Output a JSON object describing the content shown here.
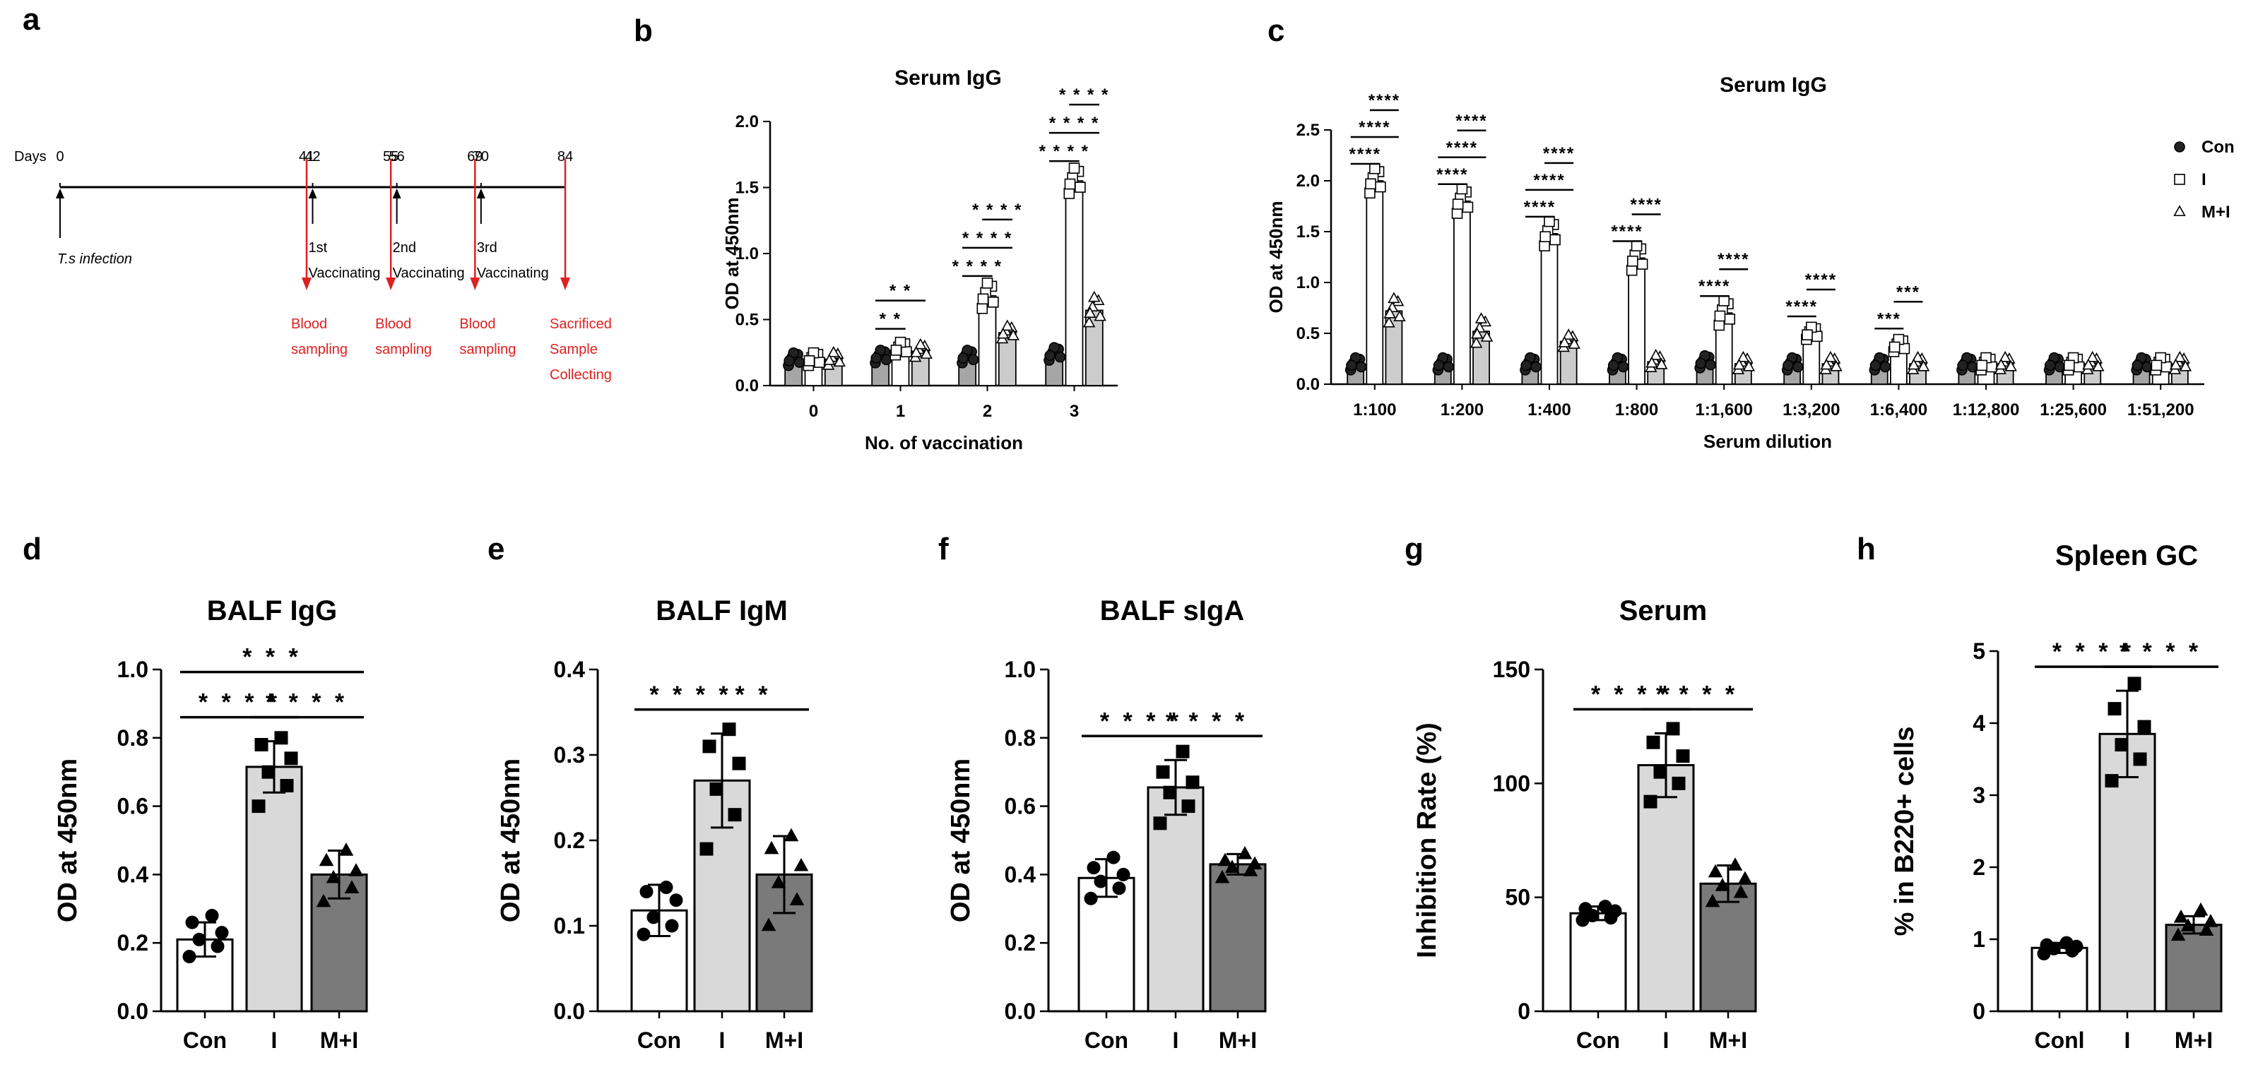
{
  "panel_labels": [
    "a",
    "b",
    "c",
    "d",
    "e",
    "f",
    "g",
    "h"
  ],
  "timeline": {
    "days_label": "Days",
    "ticks": [
      {
        "day": 0,
        "label": "0"
      },
      {
        "day": 41,
        "label": "41"
      },
      {
        "day": 42,
        "label": "42"
      },
      {
        "day": 55,
        "label": "55"
      },
      {
        "day": 56,
        "label": "56"
      },
      {
        "day": 69,
        "label": "69"
      },
      {
        "day": 70,
        "label": "70"
      },
      {
        "day": 84,
        "label": "84"
      }
    ],
    "infection": {
      "day": 0,
      "label": "T.s infection"
    },
    "vaccinations": [
      {
        "day": 42,
        "num": "1st",
        "label": "Vaccinating"
      },
      {
        "day": 56,
        "num": "2nd",
        "label": "Vaccinating"
      },
      {
        "day": 70,
        "num": "3rd",
        "label": "Vaccinating"
      }
    ],
    "samplings": [
      {
        "day": 41,
        "lines": [
          "Blood",
          "sampling"
        ]
      },
      {
        "day": 55,
        "lines": [
          "Blood",
          "sampling"
        ]
      },
      {
        "day": 69,
        "lines": [
          "Blood",
          "sampling"
        ]
      },
      {
        "day": 84,
        "lines": [
          "Sacrificed",
          "Sample",
          "Collecting"
        ]
      }
    ],
    "red_color": "#e02020"
  },
  "colors": {
    "con": "#ffffff",
    "i": "#d9d9d9",
    "mi": "#7a7a7a",
    "con_small": "#a6a6a6",
    "i_small": "#ffffff",
    "mi_small": "#cccccc"
  },
  "legend": {
    "items": [
      {
        "symbol": "circle",
        "label": "Con"
      },
      {
        "symbol": "square",
        "label": "I"
      },
      {
        "symbol": "triangle",
        "label": "M+I"
      }
    ]
  },
  "chart_data": [
    {
      "panel": "b",
      "type": "bar",
      "title": "Serum IgG",
      "xlabel": "No. of vaccination",
      "ylabel": "OD at 450nm",
      "ylim": [
        0,
        2.0
      ],
      "yticks": [
        0.0,
        0.5,
        1.0,
        1.5,
        2.0
      ],
      "categories": [
        "0",
        "1",
        "2",
        "3"
      ],
      "series": [
        {
          "name": "Con",
          "values": [
            0.2,
            0.22,
            0.22,
            0.24
          ]
        },
        {
          "name": "I",
          "values": [
            0.2,
            0.28,
            0.68,
            1.55
          ]
        },
        {
          "name": "M+I",
          "values": [
            0.2,
            0.26,
            0.4,
            0.57
          ]
        }
      ],
      "significance": [
        {
          "cat": 1,
          "from": 0,
          "to": 1,
          "label": "* *"
        },
        {
          "cat": 1,
          "from": 0,
          "to": 2,
          "label": "* *"
        },
        {
          "cat": 2,
          "from": 0,
          "to": 1,
          "label": "* * * *"
        },
        {
          "cat": 2,
          "from": 0,
          "to": 2,
          "label": "* * * *"
        },
        {
          "cat": 2,
          "from": 1,
          "to": 2,
          "label": "* * * *"
        },
        {
          "cat": 3,
          "from": 0,
          "to": 1,
          "label": "* * * *"
        },
        {
          "cat": 3,
          "from": 0,
          "to": 2,
          "label": "* * * *"
        },
        {
          "cat": 3,
          "from": 1,
          "to": 2,
          "label": "* * * *"
        }
      ]
    },
    {
      "panel": "c",
      "type": "bar",
      "title": "Serum IgG",
      "xlabel": "Serum dilution",
      "ylabel": "OD at 450nm",
      "ylim": [
        0,
        2.5
      ],
      "yticks": [
        0.0,
        0.5,
        1.0,
        1.5,
        2.0,
        2.5
      ],
      "categories": [
        "1:100",
        "1:200",
        "1:400",
        "1:800",
        "1:1,600",
        "1:3,200",
        "1:6,400",
        "1:12,800",
        "1:25,600",
        "1:51,200"
      ],
      "series": [
        {
          "name": "Con",
          "values": [
            0.2,
            0.2,
            0.2,
            0.2,
            0.22,
            0.2,
            0.2,
            0.2,
            0.2,
            0.2
          ]
        },
        {
          "name": "I",
          "values": [
            2.0,
            1.8,
            1.48,
            1.24,
            0.7,
            0.5,
            0.38,
            0.2,
            0.2,
            0.2
          ]
        },
        {
          "name": "M+I",
          "values": [
            0.72,
            0.52,
            0.42,
            0.22,
            0.2,
            0.2,
            0.2,
            0.2,
            0.2,
            0.2
          ]
        }
      ],
      "significance": [
        {
          "cat": 0,
          "from": 0,
          "to": 1,
          "label": "****"
        },
        {
          "cat": 0,
          "from": 0,
          "to": 2,
          "label": "****"
        },
        {
          "cat": 0,
          "from": 1,
          "to": 2,
          "label": "****"
        },
        {
          "cat": 1,
          "from": 0,
          "to": 1,
          "label": "****"
        },
        {
          "cat": 1,
          "from": 0,
          "to": 2,
          "label": "****"
        },
        {
          "cat": 1,
          "from": 1,
          "to": 2,
          "label": "****"
        },
        {
          "cat": 2,
          "from": 0,
          "to": 1,
          "label": "****"
        },
        {
          "cat": 2,
          "from": 0,
          "to": 2,
          "label": "****"
        },
        {
          "cat": 2,
          "from": 1,
          "to": 2,
          "label": "****"
        },
        {
          "cat": 3,
          "from": 0,
          "to": 1,
          "label": "****"
        },
        {
          "cat": 3,
          "from": 1,
          "to": 2,
          "label": "****"
        },
        {
          "cat": 4,
          "from": 0,
          "to": 1,
          "label": "****"
        },
        {
          "cat": 4,
          "from": 1,
          "to": 2,
          "label": "****"
        },
        {
          "cat": 5,
          "from": 0,
          "to": 1,
          "label": "****"
        },
        {
          "cat": 5,
          "from": 1,
          "to": 2,
          "label": "****"
        },
        {
          "cat": 6,
          "from": 0,
          "to": 1,
          "label": "***"
        },
        {
          "cat": 6,
          "from": 1,
          "to": 2,
          "label": "***"
        }
      ]
    },
    {
      "panel": "d",
      "type": "bar",
      "title": "BALF IgG",
      "xlabel": "",
      "ylabel": "OD at 450nm",
      "ylim": [
        0,
        1.0
      ],
      "yticks": [
        0.0,
        0.2,
        0.4,
        0.6,
        0.8,
        1.0
      ],
      "decimals": 1,
      "categories": [
        "Con",
        "I",
        "M+I"
      ],
      "values": [
        0.21,
        0.715,
        0.4
      ],
      "errors": [
        0.05,
        0.075,
        0.07
      ],
      "points": [
        [
          0.16,
          0.19,
          0.21,
          0.23,
          0.26,
          0.28
        ],
        [
          0.6,
          0.66,
          0.7,
          0.74,
          0.78,
          0.8
        ],
        [
          0.32,
          0.36,
          0.39,
          0.41,
          0.44,
          0.47
        ]
      ],
      "significance": [
        {
          "from": 0,
          "to": 1,
          "label": "* * * *"
        },
        {
          "from": 1,
          "to": 2,
          "label": "* * * *"
        },
        {
          "from": 0,
          "to": 2,
          "label": "* * *"
        }
      ]
    },
    {
      "panel": "e",
      "type": "bar",
      "title": "BALF IgM",
      "xlabel": "",
      "ylabel": "OD at 450nm",
      "ylim": [
        0,
        0.4
      ],
      "yticks": [
        0.0,
        0.1,
        0.2,
        0.3,
        0.4
      ],
      "decimals": 1,
      "categories": [
        "Con",
        "I",
        "M+I"
      ],
      "values": [
        0.118,
        0.27,
        0.16
      ],
      "errors": [
        0.03,
        0.055,
        0.045
      ],
      "points": [
        [
          0.09,
          0.1,
          0.11,
          0.13,
          0.14,
          0.145
        ],
        [
          0.19,
          0.23,
          0.26,
          0.29,
          0.31,
          0.33
        ],
        [
          0.1,
          0.13,
          0.15,
          0.17,
          0.19,
          0.205
        ]
      ],
      "significance": [
        {
          "from": 0,
          "to": 1,
          "label": "* * * *"
        },
        {
          "from": 1,
          "to": 2,
          "label": "* *"
        }
      ]
    },
    {
      "panel": "f",
      "type": "bar",
      "title": "BALF sIgA",
      "xlabel": "",
      "ylabel": "OD at 450nm",
      "ylim": [
        0,
        1.0
      ],
      "yticks": [
        0.0,
        0.2,
        0.4,
        0.6,
        0.8,
        1.0
      ],
      "decimals": 1,
      "categories": [
        "Con",
        "I",
        "M+I"
      ],
      "values": [
        0.39,
        0.655,
        0.43
      ],
      "errors": [
        0.055,
        0.08,
        0.03
      ],
      "points": [
        [
          0.33,
          0.36,
          0.38,
          0.4,
          0.42,
          0.45
        ],
        [
          0.55,
          0.6,
          0.64,
          0.67,
          0.7,
          0.76
        ],
        [
          0.39,
          0.41,
          0.42,
          0.43,
          0.44,
          0.46
        ]
      ],
      "significance": [
        {
          "from": 0,
          "to": 1,
          "label": "* * * *"
        },
        {
          "from": 1,
          "to": 2,
          "label": "* * * *"
        }
      ]
    },
    {
      "panel": "g",
      "type": "bar",
      "title": "Serum",
      "xlabel": "",
      "ylabel": "Inhibition Rate (%)",
      "ylim": [
        0,
        150
      ],
      "yticks": [
        0,
        50,
        100,
        150
      ],
      "decimals": 0,
      "categories": [
        "Con",
        "I",
        "M+I"
      ],
      "values": [
        43,
        108,
        56
      ],
      "errors": [
        3,
        14,
        8
      ],
      "points": [
        [
          40,
          41,
          42,
          44,
          45,
          46
        ],
        [
          92,
          100,
          105,
          112,
          118,
          124
        ],
        [
          48,
          52,
          55,
          58,
          61,
          64
        ]
      ],
      "significance": [
        {
          "from": 0,
          "to": 1,
          "label": "* * * *"
        },
        {
          "from": 1,
          "to": 2,
          "label": "* * * *"
        }
      ]
    },
    {
      "panel": "h",
      "type": "bar",
      "title": "Spleen GC",
      "xlabel": "",
      "ylabel": "% in B220+ cells",
      "ylim": [
        0,
        5
      ],
      "yticks": [
        0,
        1,
        2,
        3,
        4,
        5
      ],
      "decimals": 0,
      "categories": [
        "Conl",
        "I",
        "M+I"
      ],
      "values": [
        0.88,
        3.85,
        1.2
      ],
      "errors": [
        0.07,
        0.6,
        0.12
      ],
      "points": [
        [
          0.8,
          0.84,
          0.87,
          0.9,
          0.92,
          0.95
        ],
        [
          3.2,
          3.5,
          3.7,
          3.95,
          4.2,
          4.55
        ],
        [
          1.05,
          1.12,
          1.18,
          1.24,
          1.3,
          1.4
        ]
      ],
      "significance": [
        {
          "from": 0,
          "to": 1,
          "label": "* * * *"
        },
        {
          "from": 1,
          "to": 2,
          "label": "* * * *"
        }
      ]
    }
  ]
}
